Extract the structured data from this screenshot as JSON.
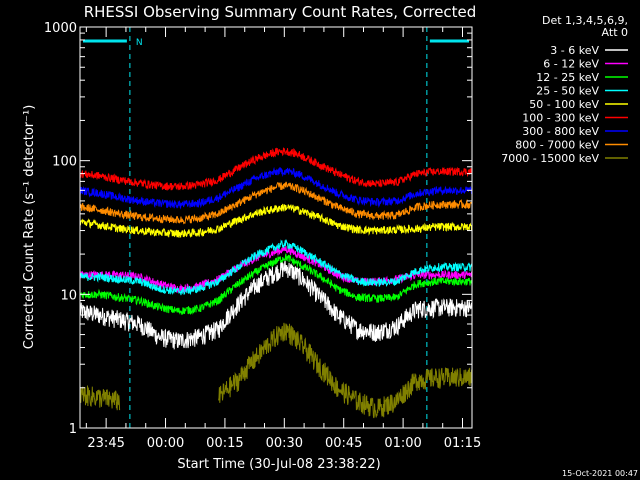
{
  "chart_data": {
    "type": "line",
    "title": "RHESSI Observing Summary Count Rates, Corrected",
    "xlabel": "Start Time (30-Jul-08 23:38:22)",
    "ylabel": "Corrected Count Rate (s⁻¹ detector⁻¹)",
    "y_scale": "log",
    "ylim": [
      1,
      1000
    ],
    "x_unit": "minutes since start",
    "xlim": [
      0,
      99
    ],
    "x_ticks": [
      {
        "label": "23:45",
        "value": 6.6
      },
      {
        "label": "00:00",
        "value": 21.6
      },
      {
        "label": "00:15",
        "value": 36.6
      },
      {
        "label": "00:30",
        "value": 51.6
      },
      {
        "label": "00:45",
        "value": 66.6
      },
      {
        "label": "01:00",
        "value": 81.6
      },
      {
        "label": "01:15",
        "value": 96.6
      }
    ],
    "y_ticks": [
      {
        "label": "1",
        "value": 1
      },
      {
        "label": "10",
        "value": 10
      },
      {
        "label": "100",
        "value": 100
      },
      {
        "label": "1000",
        "value": 1000
      }
    ],
    "legend_header": [
      "Det 1,3,4,5,6,9,",
      "Att 0"
    ],
    "legend_position": "right",
    "night_intervals": [
      [
        0,
        12.6
      ],
      [
        87.6,
        99
      ]
    ],
    "saa_marker": "N",
    "x": [
      0,
      5,
      10,
      15,
      20,
      25,
      30,
      35,
      40,
      45,
      50,
      52,
      55,
      60,
      65,
      70,
      75,
      80,
      85,
      90,
      95,
      99
    ],
    "series": [
      {
        "name": "3 - 6 keV",
        "color": "#ffffff",
        "values": [
          7.5,
          7.0,
          6.5,
          6.0,
          4.8,
          4.5,
          4.8,
          5.5,
          8.5,
          12,
          15,
          16,
          14,
          10,
          7,
          5.5,
          5.2,
          5.8,
          7.8,
          8.0,
          8.0,
          8.0
        ]
      },
      {
        "name": "6 - 12 keV",
        "color": "#ff00ff",
        "values": [
          14,
          14,
          14,
          13.5,
          12,
          11,
          11.5,
          13,
          16,
          19,
          21,
          22,
          20,
          17,
          14,
          12.5,
          12.5,
          13,
          14,
          14,
          14,
          14
        ]
      },
      {
        "name": "12 - 25 keV",
        "color": "#00ff00",
        "values": [
          10,
          10,
          9.5,
          9,
          8,
          7.5,
          7.8,
          9,
          12,
          15,
          18,
          19,
          17,
          14,
          11,
          9.5,
          9.3,
          9.5,
          12,
          12.5,
          12.5,
          12.5
        ]
      },
      {
        "name": "25 - 50 keV",
        "color": "#00ffff",
        "values": [
          13.5,
          13.5,
          13,
          12.5,
          11,
          10.5,
          11,
          12.5,
          16,
          20,
          23,
          24,
          22,
          18,
          14.5,
          12.5,
          12.3,
          12.5,
          15,
          16,
          16,
          16
        ]
      },
      {
        "name": "50 - 100 keV",
        "color": "#ffff00",
        "values": [
          35,
          33,
          31,
          30,
          29,
          28.5,
          29,
          31,
          36,
          41,
          44,
          45,
          43,
          38,
          33,
          30.5,
          30,
          30.5,
          31,
          32,
          32,
          32
        ]
      },
      {
        "name": "100 - 300 keV",
        "color": "#ff0000",
        "values": [
          80,
          77,
          72,
          68,
          65,
          64,
          66,
          72,
          88,
          105,
          117,
          118,
          112,
          95,
          80,
          70,
          67,
          69,
          80,
          83,
          83,
          83
        ]
      },
      {
        "name": "300 - 800 keV",
        "color": "#0000ff",
        "values": [
          60,
          57,
          53,
          50,
          48,
          47,
          48,
          53,
          63,
          75,
          83,
          84,
          80,
          68,
          57,
          51,
          49,
          50,
          57,
          60,
          60,
          60
        ]
      },
      {
        "name": "800 - 7000 keV",
        "color": "#ff8c00",
        "values": [
          45,
          43,
          40,
          38,
          37,
          36,
          37,
          40,
          48,
          57,
          64,
          65,
          62,
          53,
          45,
          40,
          38.5,
          39,
          45,
          47,
          47,
          47
        ]
      },
      {
        "name": "7000 - 15000 keV",
        "color": "#808000",
        "values": [
          1.8,
          1.7,
          1.6,
          null,
          null,
          null,
          null,
          1.7,
          2.3,
          3.5,
          5,
          5.5,
          4.5,
          3,
          2,
          1.6,
          1.4,
          1.6,
          2.3,
          2.4,
          2.4,
          2.4
        ]
      }
    ]
  },
  "footer": {
    "timestamp": "15-Oct-2021 00:47"
  }
}
